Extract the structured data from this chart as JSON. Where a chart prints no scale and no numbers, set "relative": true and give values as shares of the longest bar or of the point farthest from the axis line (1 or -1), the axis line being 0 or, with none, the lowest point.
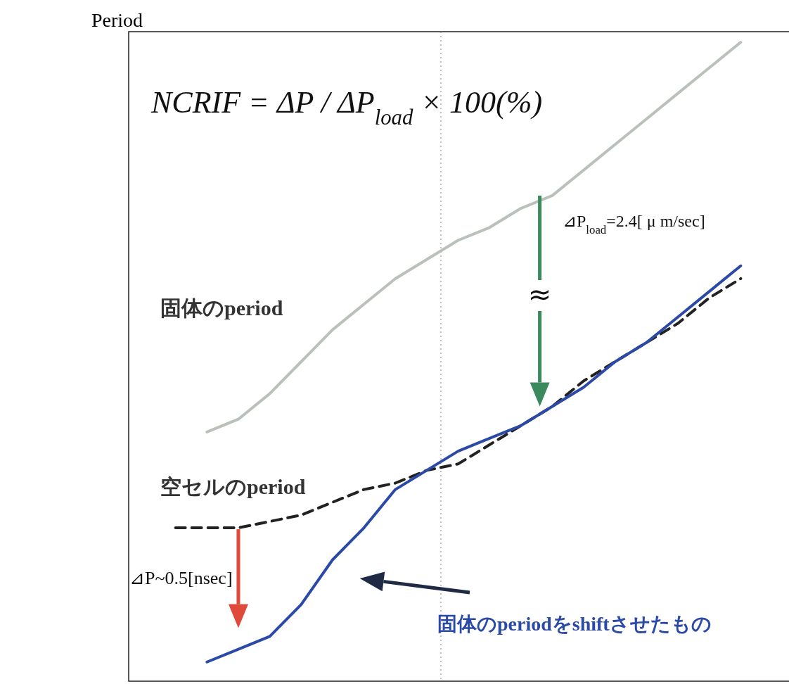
{
  "chart_data": {
    "type": "line",
    "relative": true,
    "ylabel": "Period",
    "categories": [
      null,
      null,
      null,
      null,
      null,
      null,
      null,
      null,
      null,
      null,
      null,
      null,
      null,
      null,
      null,
      null,
      null,
      null,
      null,
      null,
      null
    ],
    "series": [
      {
        "color": "#b9c1ba",
        "values": [
          null,
          null,
          0.39,
          0.41,
          0.45,
          0.5,
          0.55,
          0.59,
          0.63,
          0.66,
          0.69,
          0.71,
          0.74,
          0.76,
          0.8,
          0.84,
          0.88,
          0.92,
          0.96,
          1.0,
          null
        ]
      },
      {
        "color": "#222222",
        "line_style": "dashed",
        "values": [
          null,
          0.24,
          0.24,
          0.24,
          0.25,
          0.26,
          0.28,
          0.3,
          0.31,
          0.33,
          0.34,
          0.37,
          0.4,
          0.43,
          0.47,
          0.5,
          0.53,
          0.56,
          0.6,
          0.63,
          null
        ]
      },
      {
        "color": "#2b4aa8",
        "values": [
          null,
          null,
          0.03,
          0.05,
          0.07,
          0.12,
          0.19,
          0.24,
          0.3,
          0.33,
          0.36,
          0.38,
          0.4,
          0.43,
          0.46,
          0.5,
          0.53,
          0.57,
          0.61,
          0.65,
          null
        ]
      }
    ],
    "annotations": [
      "NCRIF = ΔP / ΔP$_{load}$ × 100(%)",
      "⊿P$_{load}$=2.4[ μ m/sec]",
      "≈",
      "固体のperiod",
      "空セルのperiod",
      "⊿P~0.5[nsec]",
      "固体のperiodをshiftさせたもの"
    ]
  }
}
